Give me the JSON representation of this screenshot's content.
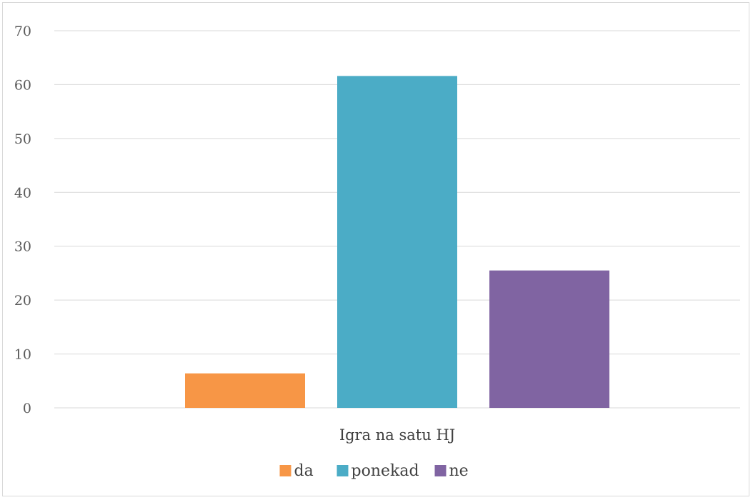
{
  "chart_data": {
    "type": "bar",
    "categories": [
      "Igra na satu HJ"
    ],
    "series": [
      {
        "name": "da",
        "values": [
          6.4
        ],
        "color": "#F79646"
      },
      {
        "name": "ponekad",
        "values": [
          61.6
        ],
        "color": "#4BACC6"
      },
      {
        "name": "ne",
        "values": [
          25.5
        ],
        "color": "#8064A2"
      }
    ],
    "ylim": [
      0,
      70
    ],
    "yticks": [
      0,
      10,
      20,
      30,
      40,
      50,
      60,
      70
    ],
    "grid": true,
    "gridColor": "#d9d9d9",
    "legend": "bottom"
  }
}
